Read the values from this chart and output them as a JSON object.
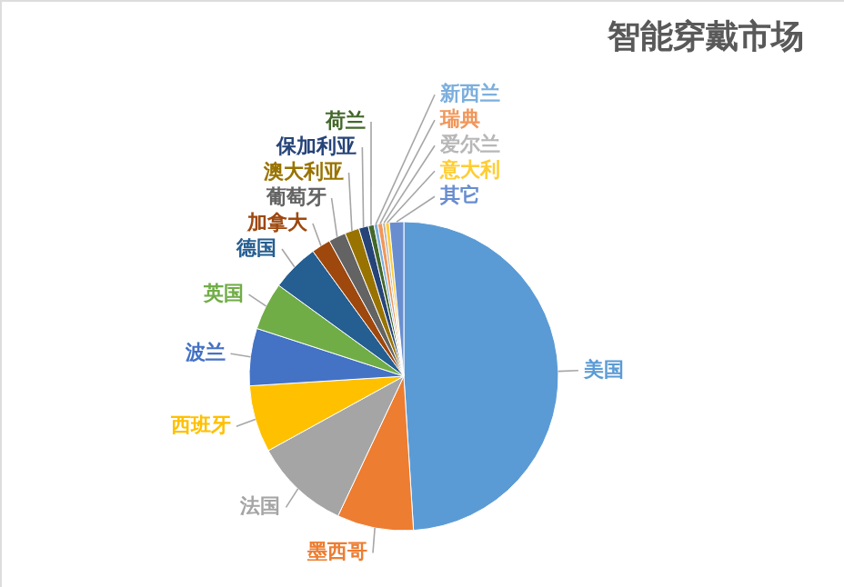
{
  "chart_data": {
    "type": "pie",
    "title": "智能穿戴市场",
    "categories": [
      "美国",
      "墨西哥",
      "法国",
      "西班牙",
      "波兰",
      "英国",
      "德国",
      "加拿大",
      "葡萄牙",
      "澳大利亚",
      "保加利亚",
      "荷兰",
      "新西兰",
      "瑞典",
      "爱尔兰",
      "意大利",
      "其它"
    ],
    "values": [
      49,
      8,
      10,
      7,
      6,
      5,
      5,
      2,
      1.8,
      1.5,
      1,
      0.6,
      0.4,
      0.5,
      0.3,
      0.4,
      1.5
    ],
    "colors": [
      "#5b9bd5",
      "#ed7d31",
      "#a5a5a5",
      "#ffc000",
      "#4472c4",
      "#70ad47",
      "#255e91",
      "#9e480e",
      "#636363",
      "#997300",
      "#264478",
      "#43682b",
      "#7cafdd",
      "#f1975a",
      "#b7b7b7",
      "#ffcd33",
      "#698ed0"
    ]
  }
}
